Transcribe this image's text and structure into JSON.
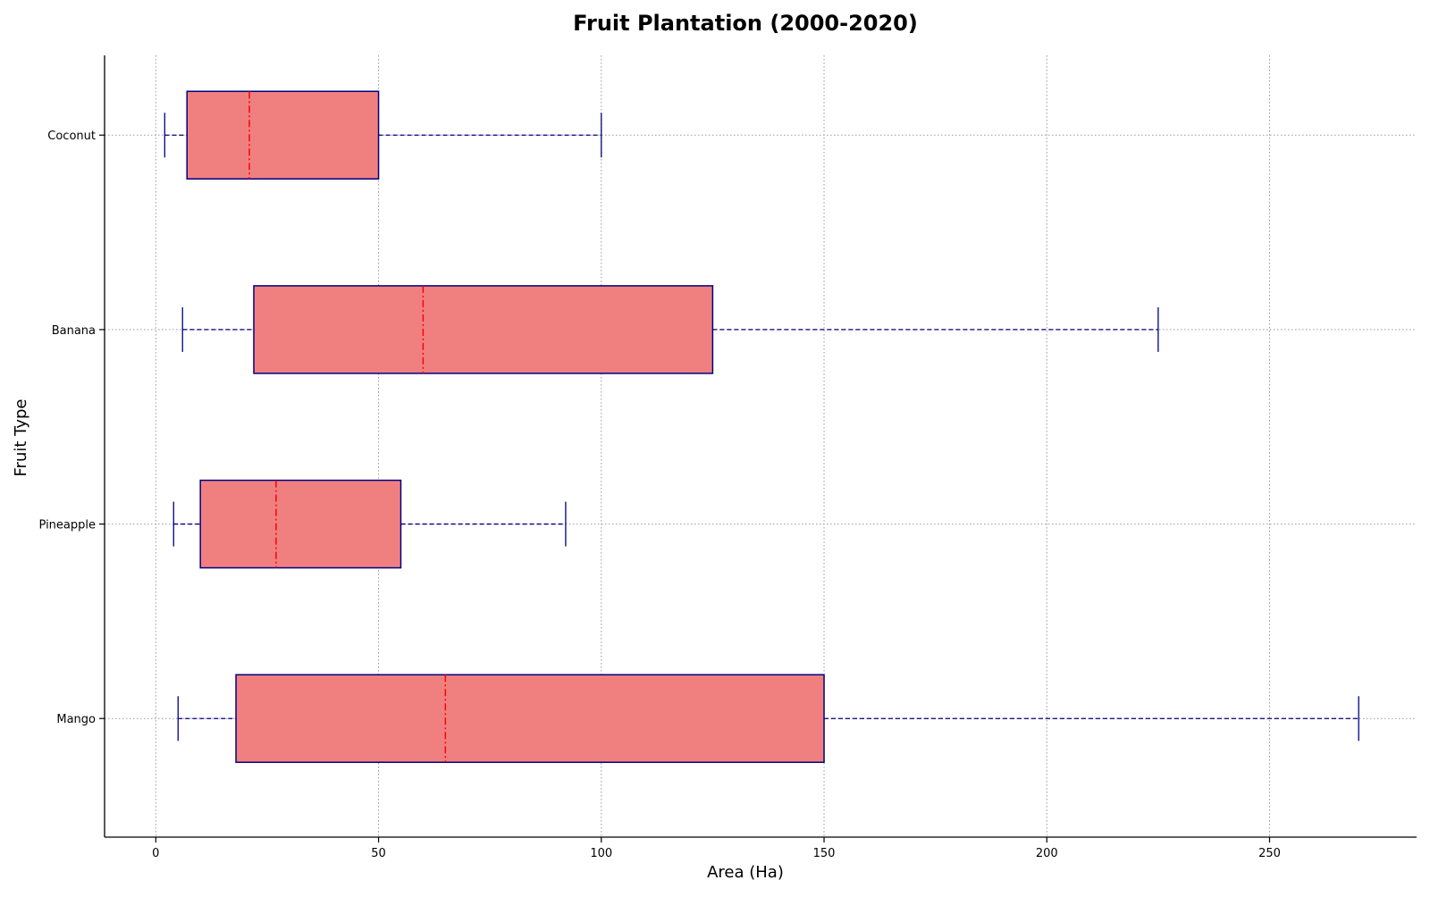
{
  "chart_data": {
    "type": "boxplot",
    "orientation": "horizontal",
    "title": "Fruit Plantation (2000-2020)",
    "xlabel": "Area (Ha)",
    "ylabel": "Fruit Type",
    "xlim": [
      -11.5,
      283
    ],
    "xticks": [
      0,
      50,
      100,
      150,
      200,
      250
    ],
    "grid": true,
    "categories": [
      "Mango",
      "Pineapple",
      "Banana",
      "Coconut"
    ],
    "boxes": [
      {
        "label": "Mango",
        "whisker_low": 5,
        "q1": 18,
        "median": 65,
        "q3": 150,
        "whisker_high": 270
      },
      {
        "label": "Pineapple",
        "whisker_low": 4,
        "q1": 10,
        "median": 27,
        "q3": 55,
        "whisker_high": 92
      },
      {
        "label": "Banana",
        "whisker_low": 6,
        "q1": 22,
        "median": 60,
        "q3": 125,
        "whisker_high": 225
      },
      {
        "label": "Coconut",
        "whisker_low": 2,
        "q1": 7,
        "median": 21,
        "q3": 50,
        "whisker_high": 100
      }
    ],
    "colors": {
      "box_fill": "#f08080",
      "box_edge": "#000080",
      "median": "#ff0000",
      "whisker": "#000080",
      "grid": "#999999",
      "axis": "#000000"
    }
  }
}
